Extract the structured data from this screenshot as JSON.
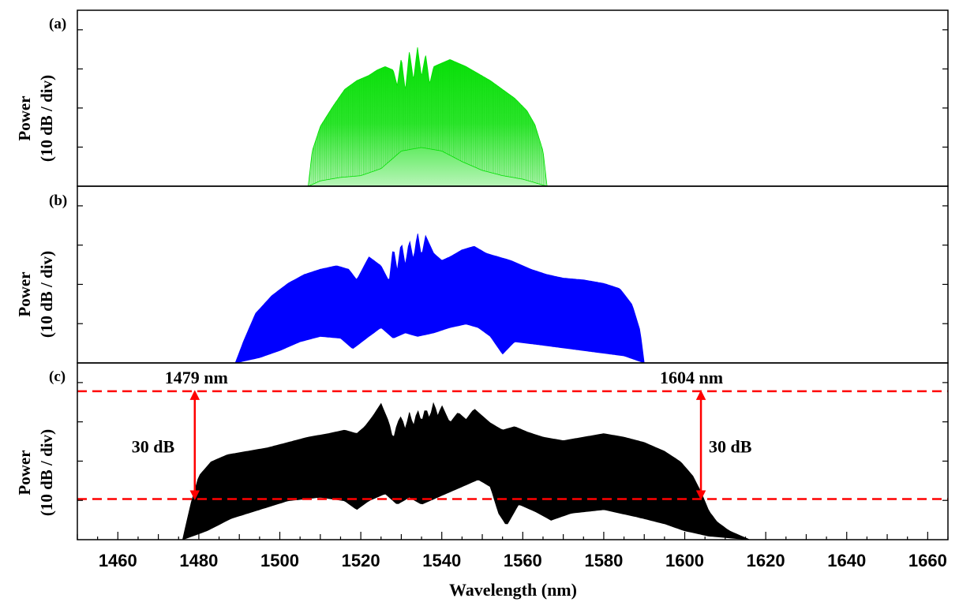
{
  "chart_data": [
    {
      "panel": "(a)",
      "type": "area",
      "color": "#00e000",
      "ylabel": [
        "Power",
        "(10 dB / div)"
      ],
      "xlim": [
        1450,
        1665
      ],
      "ylim": [
        0,
        1
      ],
      "grid": false,
      "envelope_top": [
        [
          1507,
          0.0
        ],
        [
          1508,
          0.2
        ],
        [
          1510,
          0.34
        ],
        [
          1513,
          0.45
        ],
        [
          1516,
          0.55
        ],
        [
          1519,
          0.6
        ],
        [
          1522,
          0.63
        ],
        [
          1524,
          0.66
        ],
        [
          1526,
          0.68
        ],
        [
          1528,
          0.66
        ],
        [
          1529,
          0.57
        ],
        [
          1530,
          0.73
        ],
        [
          1531,
          0.54
        ],
        [
          1532,
          0.77
        ],
        [
          1533,
          0.6
        ],
        [
          1534,
          0.79
        ],
        [
          1535,
          0.62
        ],
        [
          1536,
          0.75
        ],
        [
          1537,
          0.58
        ],
        [
          1538,
          0.68
        ],
        [
          1540,
          0.7
        ],
        [
          1542,
          0.72
        ],
        [
          1544,
          0.7
        ],
        [
          1546,
          0.68
        ],
        [
          1549,
          0.64
        ],
        [
          1552,
          0.6
        ],
        [
          1555,
          0.55
        ],
        [
          1558,
          0.5
        ],
        [
          1561,
          0.43
        ],
        [
          1563,
          0.35
        ],
        [
          1565,
          0.2
        ],
        [
          1566,
          0.0
        ]
      ],
      "envelope_bottom": [
        [
          1507,
          0.0
        ],
        [
          1510,
          0.03
        ],
        [
          1515,
          0.05
        ],
        [
          1520,
          0.06
        ],
        [
          1525,
          0.1
        ],
        [
          1530,
          0.2
        ],
        [
          1535,
          0.22
        ],
        [
          1540,
          0.2
        ],
        [
          1545,
          0.14
        ],
        [
          1550,
          0.09
        ],
        [
          1555,
          0.06
        ],
        [
          1560,
          0.04
        ],
        [
          1566,
          0.0
        ]
      ]
    },
    {
      "panel": "(b)",
      "type": "area",
      "color": "#0000ff",
      "ylabel": [
        "Power",
        "(10 dB / div)"
      ],
      "xlim": [
        1450,
        1665
      ],
      "ylim": [
        0,
        1
      ],
      "grid": false,
      "envelope_top": [
        [
          1489,
          0.0
        ],
        [
          1491,
          0.12
        ],
        [
          1494,
          0.28
        ],
        [
          1498,
          0.38
        ],
        [
          1502,
          0.45
        ],
        [
          1506,
          0.5
        ],
        [
          1510,
          0.53
        ],
        [
          1514,
          0.55
        ],
        [
          1517,
          0.53
        ],
        [
          1519,
          0.47
        ],
        [
          1522,
          0.6
        ],
        [
          1525,
          0.55
        ],
        [
          1527,
          0.46
        ],
        [
          1528,
          0.66
        ],
        [
          1529,
          0.52
        ],
        [
          1530,
          0.69
        ],
        [
          1531,
          0.55
        ],
        [
          1532,
          0.7
        ],
        [
          1533,
          0.58
        ],
        [
          1534,
          0.74
        ],
        [
          1535,
          0.6
        ],
        [
          1536,
          0.72
        ],
        [
          1538,
          0.62
        ],
        [
          1540,
          0.58
        ],
        [
          1542,
          0.6
        ],
        [
          1545,
          0.64
        ],
        [
          1548,
          0.66
        ],
        [
          1551,
          0.62
        ],
        [
          1554,
          0.6
        ],
        [
          1557,
          0.58
        ],
        [
          1562,
          0.53
        ],
        [
          1566,
          0.5
        ],
        [
          1570,
          0.48
        ],
        [
          1575,
          0.47
        ],
        [
          1580,
          0.45
        ],
        [
          1584,
          0.42
        ],
        [
          1587,
          0.33
        ],
        [
          1589,
          0.18
        ],
        [
          1590,
          0.0
        ]
      ],
      "envelope_bottom": [
        [
          1489,
          0.0
        ],
        [
          1495,
          0.03
        ],
        [
          1500,
          0.07
        ],
        [
          1505,
          0.12
        ],
        [
          1510,
          0.15
        ],
        [
          1515,
          0.14
        ],
        [
          1518,
          0.08
        ],
        [
          1522,
          0.15
        ],
        [
          1525,
          0.2
        ],
        [
          1528,
          0.14
        ],
        [
          1531,
          0.17
        ],
        [
          1534,
          0.15
        ],
        [
          1538,
          0.17
        ],
        [
          1542,
          0.2
        ],
        [
          1546,
          0.22
        ],
        [
          1549,
          0.2
        ],
        [
          1552,
          0.15
        ],
        [
          1555,
          0.05
        ],
        [
          1558,
          0.12
        ],
        [
          1565,
          0.1
        ],
        [
          1575,
          0.07
        ],
        [
          1585,
          0.04
        ],
        [
          1590,
          0.0
        ]
      ]
    },
    {
      "panel": "(c)",
      "type": "area",
      "color": "#000000",
      "ylabel": [
        "Power",
        "(10 dB / div)"
      ],
      "xlabel": "Wavelength (nm)",
      "xlim": [
        1450,
        1665
      ],
      "xticks": [
        1460,
        1480,
        1500,
        1520,
        1540,
        1560,
        1580,
        1600,
        1620,
        1640,
        1660
      ],
      "ylim": [
        0,
        1
      ],
      "grid": false,
      "envelope_top": [
        [
          1476,
          0.0
        ],
        [
          1478,
          0.2
        ],
        [
          1480,
          0.36
        ],
        [
          1483,
          0.44
        ],
        [
          1487,
          0.48
        ],
        [
          1492,
          0.5
        ],
        [
          1497,
          0.52
        ],
        [
          1502,
          0.55
        ],
        [
          1507,
          0.58
        ],
        [
          1512,
          0.6
        ],
        [
          1516,
          0.62
        ],
        [
          1519,
          0.6
        ],
        [
          1521,
          0.64
        ],
        [
          1523,
          0.7
        ],
        [
          1525,
          0.77
        ],
        [
          1527,
          0.66
        ],
        [
          1528,
          0.56
        ],
        [
          1529,
          0.66
        ],
        [
          1530,
          0.7
        ],
        [
          1531,
          0.62
        ],
        [
          1532,
          0.72
        ],
        [
          1533,
          0.64
        ],
        [
          1534,
          0.74
        ],
        [
          1535,
          0.66
        ],
        [
          1536,
          0.75
        ],
        [
          1537,
          0.68
        ],
        [
          1538,
          0.78
        ],
        [
          1539,
          0.7
        ],
        [
          1540,
          0.76
        ],
        [
          1542,
          0.66
        ],
        [
          1544,
          0.72
        ],
        [
          1546,
          0.68
        ],
        [
          1548,
          0.74
        ],
        [
          1550,
          0.7
        ],
        [
          1552,
          0.66
        ],
        [
          1555,
          0.62
        ],
        [
          1558,
          0.64
        ],
        [
          1561,
          0.61
        ],
        [
          1565,
          0.58
        ],
        [
          1570,
          0.56
        ],
        [
          1575,
          0.58
        ],
        [
          1580,
          0.6
        ],
        [
          1585,
          0.58
        ],
        [
          1590,
          0.55
        ],
        [
          1595,
          0.5
        ],
        [
          1599,
          0.44
        ],
        [
          1602,
          0.36
        ],
        [
          1604,
          0.27
        ],
        [
          1606,
          0.16
        ],
        [
          1608,
          0.1
        ],
        [
          1611,
          0.05
        ],
        [
          1614,
          0.02
        ],
        [
          1616,
          0.0
        ]
      ],
      "envelope_bottom": [
        [
          1476,
          0.0
        ],
        [
          1482,
          0.05
        ],
        [
          1488,
          0.12
        ],
        [
          1495,
          0.17
        ],
        [
          1502,
          0.22
        ],
        [
          1510,
          0.24
        ],
        [
          1516,
          0.22
        ],
        [
          1519,
          0.17
        ],
        [
          1522,
          0.22
        ],
        [
          1526,
          0.26
        ],
        [
          1529,
          0.2
        ],
        [
          1532,
          0.24
        ],
        [
          1535,
          0.2
        ],
        [
          1538,
          0.23
        ],
        [
          1541,
          0.26
        ],
        [
          1545,
          0.3
        ],
        [
          1549,
          0.34
        ],
        [
          1552,
          0.3
        ],
        [
          1554,
          0.15
        ],
        [
          1556,
          0.08
        ],
        [
          1559,
          0.2
        ],
        [
          1563,
          0.16
        ],
        [
          1567,
          0.11
        ],
        [
          1572,
          0.15
        ],
        [
          1580,
          0.17
        ],
        [
          1588,
          0.13
        ],
        [
          1595,
          0.09
        ],
        [
          1600,
          0.05
        ],
        [
          1606,
          0.02
        ],
        [
          1616,
          0.0
        ]
      ],
      "reference_lines": [
        {
          "y": 0.84,
          "color": "#ff0000",
          "style": "dashed"
        },
        {
          "y": 0.23,
          "color": "#ff0000",
          "style": "dashed"
        }
      ],
      "arrows": [
        {
          "x": 1479,
          "y_from": 0.23,
          "y_to": 0.84,
          "color": "#ff0000"
        },
        {
          "x": 1604,
          "y_from": 0.23,
          "y_to": 0.84,
          "color": "#ff0000"
        }
      ],
      "annotations": [
        {
          "text": "1479 nm",
          "x": 1479,
          "y": 0.84
        },
        {
          "text": "30 dB",
          "x": 1479,
          "y": 0.53
        },
        {
          "text": "1604 nm",
          "x": 1604,
          "y": 0.84
        },
        {
          "text": "30 dB",
          "x": 1604,
          "y": 0.53
        }
      ]
    }
  ]
}
